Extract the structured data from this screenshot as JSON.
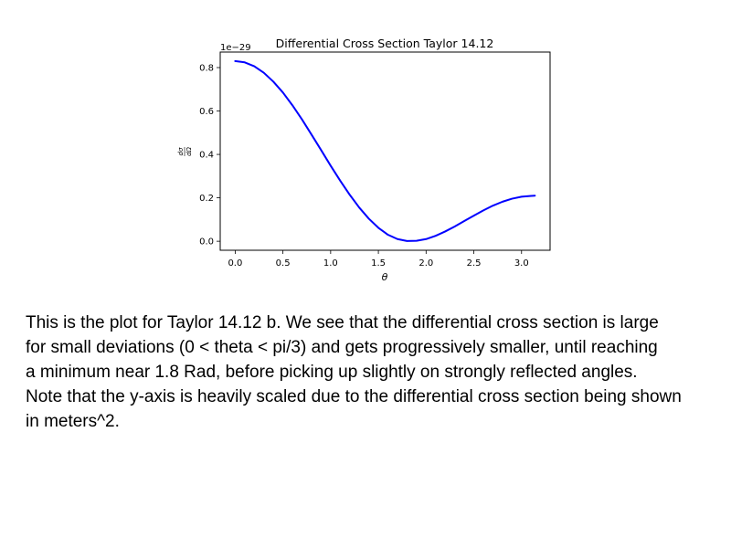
{
  "chart_data": {
    "type": "line",
    "title": "Differential Cross Section Taylor 14.12",
    "xlabel": "θ",
    "ylabel_num": "dσ",
    "ylabel_den": "dΩ",
    "y_offset_label": "1e−29",
    "xlim": [
      -0.157,
      3.299
    ],
    "ylim": [
      -0.0415,
      0.8715
    ],
    "x_ticks": [
      0.0,
      0.5,
      1.0,
      1.5,
      2.0,
      2.5,
      3.0
    ],
    "x_tick_labels": [
      "0.0",
      "0.5",
      "1.0",
      "1.5",
      "2.0",
      "2.5",
      "3.0"
    ],
    "y_ticks": [
      0.0,
      0.2,
      0.4,
      0.6,
      0.8
    ],
    "y_tick_labels": [
      "0.0",
      "0.2",
      "0.4",
      "0.6",
      "0.8"
    ],
    "grid": false,
    "series": [
      {
        "color": "#0000ff",
        "x": [
          0.0,
          0.1,
          0.2,
          0.3,
          0.4,
          0.5,
          0.6,
          0.7,
          0.8,
          0.9,
          1.0,
          1.1,
          1.2,
          1.3,
          1.4,
          1.5,
          1.6,
          1.7,
          1.8,
          1.9,
          2.0,
          2.1,
          2.2,
          2.3,
          2.4,
          2.5,
          2.6,
          2.7,
          2.8,
          2.9,
          3.0,
          3.1,
          3.14
        ],
        "y": [
          0.83,
          0.824,
          0.806,
          0.776,
          0.735,
          0.685,
          0.626,
          0.561,
          0.491,
          0.42,
          0.348,
          0.279,
          0.214,
          0.155,
          0.104,
          0.062,
          0.03,
          0.01,
          0.001,
          0.002,
          0.01,
          0.025,
          0.045,
          0.068,
          0.093,
          0.118,
          0.142,
          0.164,
          0.182,
          0.196,
          0.205,
          0.209,
          0.21
        ]
      }
    ]
  },
  "caption": {
    "lines": [
      "This is the plot for Taylor 14.12 b. We see that the differential cross section is large",
      "for small deviations (0 < theta < pi/3) and gets progressively smaller, until reaching",
      "a minimum near 1.8 Rad, before picking up slightly on strongly reflected angles.",
      "Note that the y-axis is heavily scaled due to the differential cross section being shown",
      "in meters^2."
    ]
  }
}
